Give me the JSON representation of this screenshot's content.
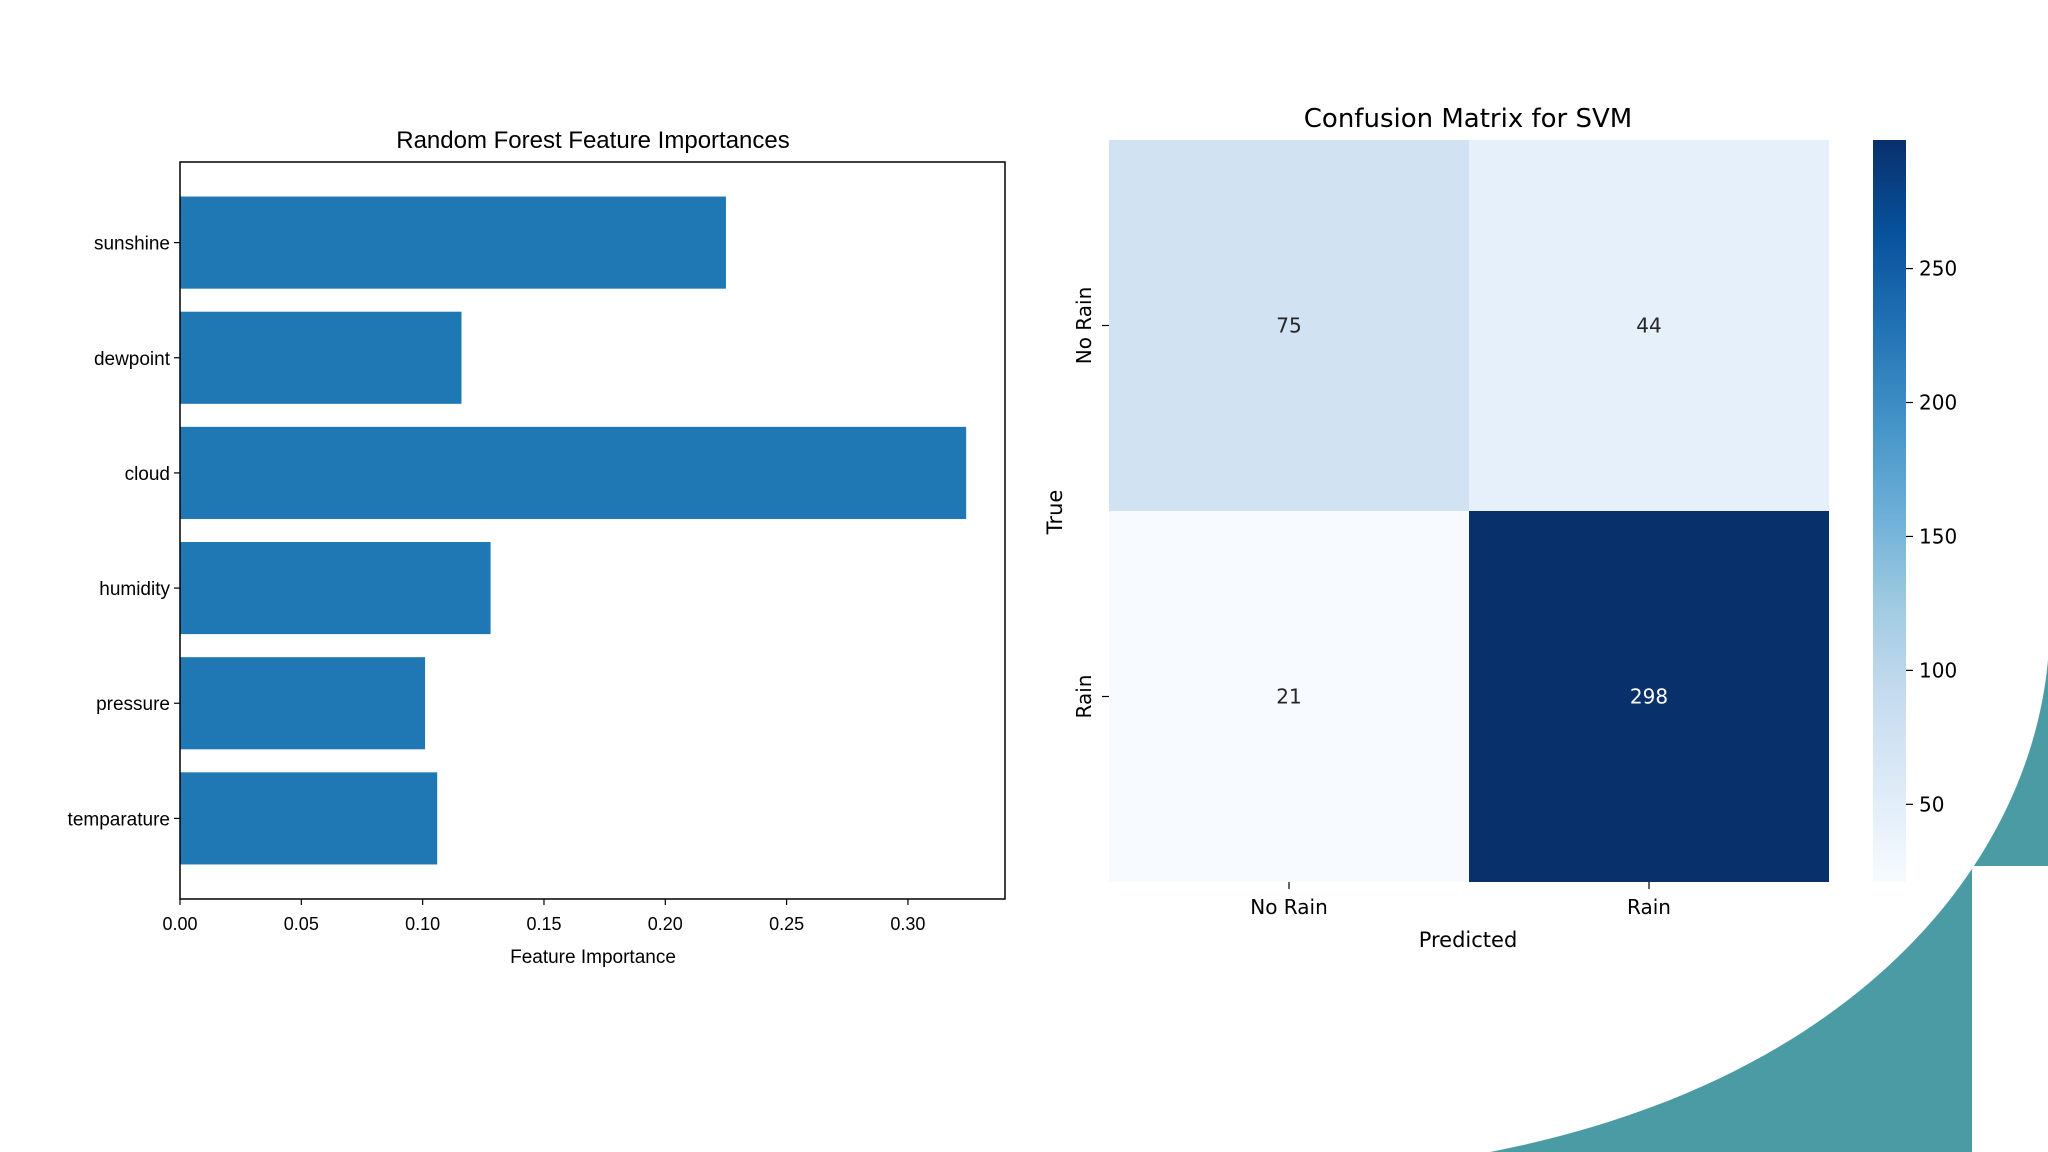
{
  "colors": {
    "bar": "#1f77b4",
    "teal": "#4a9ba3",
    "axis": "#000000",
    "text_dark": "#262626",
    "text_light": "#ffffff",
    "cmap": "Blues"
  },
  "chart_data": [
    {
      "type": "bar",
      "orientation": "horizontal",
      "title": "Random Forest Feature Importances",
      "xlabel": "Feature Importance",
      "ylabel": "",
      "categories": [
        "sunshine",
        "dewpoint",
        "cloud",
        "humidity",
        "pressure",
        "temparature"
      ],
      "values": [
        0.225,
        0.116,
        0.324,
        0.128,
        0.101,
        0.106
      ],
      "xlim": [
        0,
        0.34
      ],
      "xticks": [
        "0.00",
        "0.05",
        "0.10",
        "0.15",
        "0.20",
        "0.25",
        "0.30"
      ],
      "grid": false
    },
    {
      "type": "heatmap",
      "title": "Confusion Matrix for SVM",
      "xlabel": "Predicted",
      "ylabel": "True",
      "x_categories": [
        "No Rain",
        "Rain"
      ],
      "y_categories": [
        "No Rain",
        "Rain"
      ],
      "values": [
        [
          75,
          44
        ],
        [
          21,
          298
        ]
      ],
      "colorbar": {
        "min": 21,
        "max": 298,
        "ticks": [
          "50",
          "100",
          "150",
          "200",
          "250"
        ]
      }
    }
  ]
}
